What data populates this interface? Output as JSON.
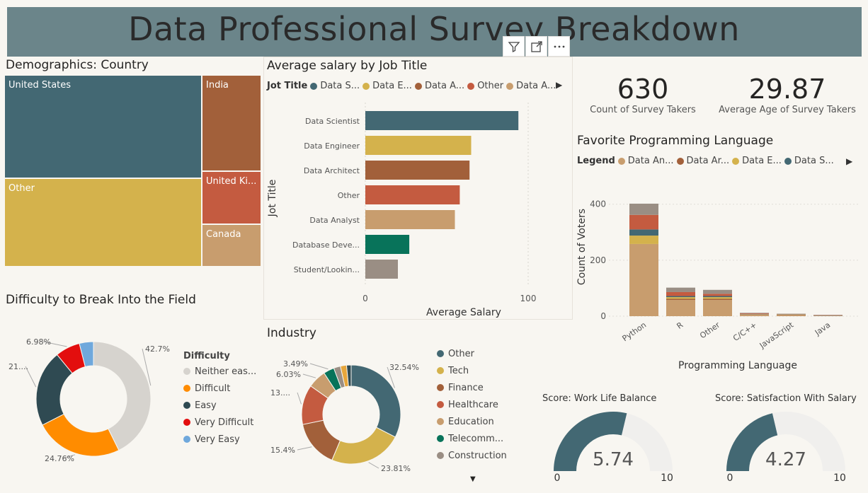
{
  "title": "Data Professional Survey Breakdown",
  "visual_header": {
    "filter_icon": "filter-icon",
    "focus_icon": "focus-mode-icon",
    "more_icon": "more-options-icon"
  },
  "treemap": {
    "title": "Demographics: Country",
    "cells": [
      {
        "label": "United States",
        "color": "#436873"
      },
      {
        "label": "India",
        "color": "#a2603a"
      },
      {
        "label": "Other",
        "color": "#d4b24c"
      },
      {
        "label": "United Ki...",
        "color": "#c45b40"
      },
      {
        "label": "Canada",
        "color": "#c89d6e"
      }
    ]
  },
  "salary_chart": {
    "title": "Average salary by Job Title",
    "legend_title": "Jot Title",
    "legend": [
      {
        "label": "Data S...",
        "color": "#436873"
      },
      {
        "label": "Data E...",
        "color": "#d4b24c"
      },
      {
        "label": "Data A...",
        "color": "#a2603a"
      },
      {
        "label": "Other",
        "color": "#c45b40"
      },
      {
        "label": "Data A...",
        "color": "#c89d6e"
      }
    ],
    "y_axis_label": "Jot Title",
    "x_axis_label": "Average Salary",
    "x_ticks": [
      "0",
      "100"
    ]
  },
  "kpis": [
    {
      "value": "630",
      "label": "Count of Survey Takers"
    },
    {
      "value": "29.87",
      "label": "Average Age of Survey Takers"
    }
  ],
  "language_chart": {
    "title": "Favorite Programming Language",
    "legend_title": "Legend",
    "legend": [
      {
        "label": "Data An...",
        "color": "#c89d6e"
      },
      {
        "label": "Data Ar...",
        "color": "#a2603a"
      },
      {
        "label": "Data E...",
        "color": "#d4b24c"
      },
      {
        "label": "Data S...",
        "color": "#436873"
      }
    ],
    "y_axis_label": "Count of Voters",
    "x_axis_label": "Programming Language",
    "y_ticks": [
      "0",
      "200",
      "400"
    ]
  },
  "difficulty_chart": {
    "title": "Difficulty to Break Into the Field",
    "legend_title": "Difficulty",
    "slice_labels": [
      "42.7%",
      "24.76%",
      "21....",
      "6.98%"
    ],
    "legend": [
      {
        "label": "Neither eas...",
        "color": "#d6d3ce"
      },
      {
        "label": "Difficult",
        "color": "#ff8c00"
      },
      {
        "label": "Easy",
        "color": "#2f4a52"
      },
      {
        "label": "Very Difficult",
        "color": "#e30e0e"
      },
      {
        "label": "Very Easy",
        "color": "#6fa8dc"
      }
    ]
  },
  "industry_chart": {
    "title": "Industry",
    "slice_labels": [
      "32.54%",
      "23.81%",
      "15.4%",
      "13....",
      "6.03%",
      "3.49%"
    ],
    "legend": [
      {
        "label": "Other",
        "color": "#436873"
      },
      {
        "label": "Tech",
        "color": "#d4b24c"
      },
      {
        "label": "Finance",
        "color": "#a2603a"
      },
      {
        "label": "Healthcare",
        "color": "#c45b40"
      },
      {
        "label": "Education",
        "color": "#c89d6e"
      },
      {
        "label": "Telecomm...",
        "color": "#08735a"
      },
      {
        "label": "Construction",
        "color": "#9a8e84"
      }
    ]
  },
  "gauges": [
    {
      "title": "Score: Work Life Balance",
      "value": "5.74",
      "min": "0",
      "max": "10"
    },
    {
      "title": "Score: Satisfaction With Salary",
      "value": "4.27",
      "min": "0",
      "max": "10"
    }
  ],
  "chart_data": [
    {
      "type": "bar",
      "title": "Average salary by Job Title",
      "xlabel": "Average Salary",
      "ylabel": "Jot Title",
      "orientation": "horizontal",
      "categories": [
        "Data Scientist",
        "Data Engineer",
        "Data Architect",
        "Other",
        "Data Analyst",
        "Database Deve...",
        "Student/Lookin..."
      ],
      "values": [
        94,
        65,
        64,
        58,
        55,
        27,
        20
      ],
      "colors": [
        "#436873",
        "#d4b24c",
        "#a2603a",
        "#c45b40",
        "#c89d6e",
        "#08735a",
        "#9a8e84"
      ],
      "xlim": [
        0,
        120
      ],
      "x_ticks": [
        0,
        100
      ]
    },
    {
      "type": "bar",
      "stacked": true,
      "title": "Favorite Programming Language",
      "xlabel": "Programming Language",
      "ylabel": "Count of Voters",
      "categories": [
        "Python",
        "R",
        "Other",
        "C/C++",
        "JavaScript",
        "Java"
      ],
      "ylim": [
        0,
        460
      ],
      "y_ticks": [
        0,
        200,
        400
      ],
      "series": [
        {
          "name": "Data An...",
          "color": "#c89d6e",
          "values": [
            258,
            58,
            58,
            5,
            4,
            2
          ]
        },
        {
          "name": "Data Ar...",
          "color": "#a2603a",
          "values": [
            0,
            4,
            4,
            1,
            1,
            0
          ]
        },
        {
          "name": "Data E...",
          "color": "#d4b24c",
          "values": [
            30,
            6,
            6,
            1,
            1,
            0
          ]
        },
        {
          "name": "Data S...",
          "color": "#436873",
          "values": [
            22,
            4,
            4,
            1,
            1,
            1
          ]
        },
        {
          "color": "#c45b40",
          "values": [
            52,
            14,
            8,
            2,
            1,
            1
          ]
        },
        {
          "color": "#9a8e84",
          "values": [
            40,
            16,
            14,
            2,
            1,
            1
          ]
        }
      ]
    },
    {
      "type": "pie",
      "donut": true,
      "title": "Difficulty to Break Into the Field",
      "categories": [
        "Neither eas...",
        "Difficult",
        "Easy",
        "Very Difficult",
        "Very Easy"
      ],
      "values": [
        42.7,
        24.76,
        21.59,
        6.98,
        3.97
      ],
      "colors": [
        "#d6d3ce",
        "#ff8c00",
        "#2f4a52",
        "#e30e0e",
        "#6fa8dc"
      ]
    },
    {
      "type": "pie",
      "donut": true,
      "title": "Industry",
      "categories": [
        "Other",
        "Tech",
        "Finance",
        "Healthcare",
        "Education",
        "Telecomm...",
        "Construction",
        "",
        ""
      ],
      "values": [
        32.54,
        23.81,
        15.4,
        13.02,
        6.03,
        3.49,
        2.22,
        2.0,
        1.49
      ],
      "colors": [
        "#436873",
        "#d4b24c",
        "#a2603a",
        "#c45b40",
        "#c89d6e",
        "#08735a",
        "#9a8e84",
        "#e6a63c",
        "#2f4a52"
      ]
    },
    {
      "type": "gauge",
      "title": "Score: Work Life Balance",
      "value": 5.74,
      "min": 0,
      "max": 10,
      "color": "#436873"
    },
    {
      "type": "gauge",
      "title": "Score: Satisfaction With Salary",
      "value": 4.27,
      "min": 0,
      "max": 10,
      "color": "#436873"
    }
  ]
}
